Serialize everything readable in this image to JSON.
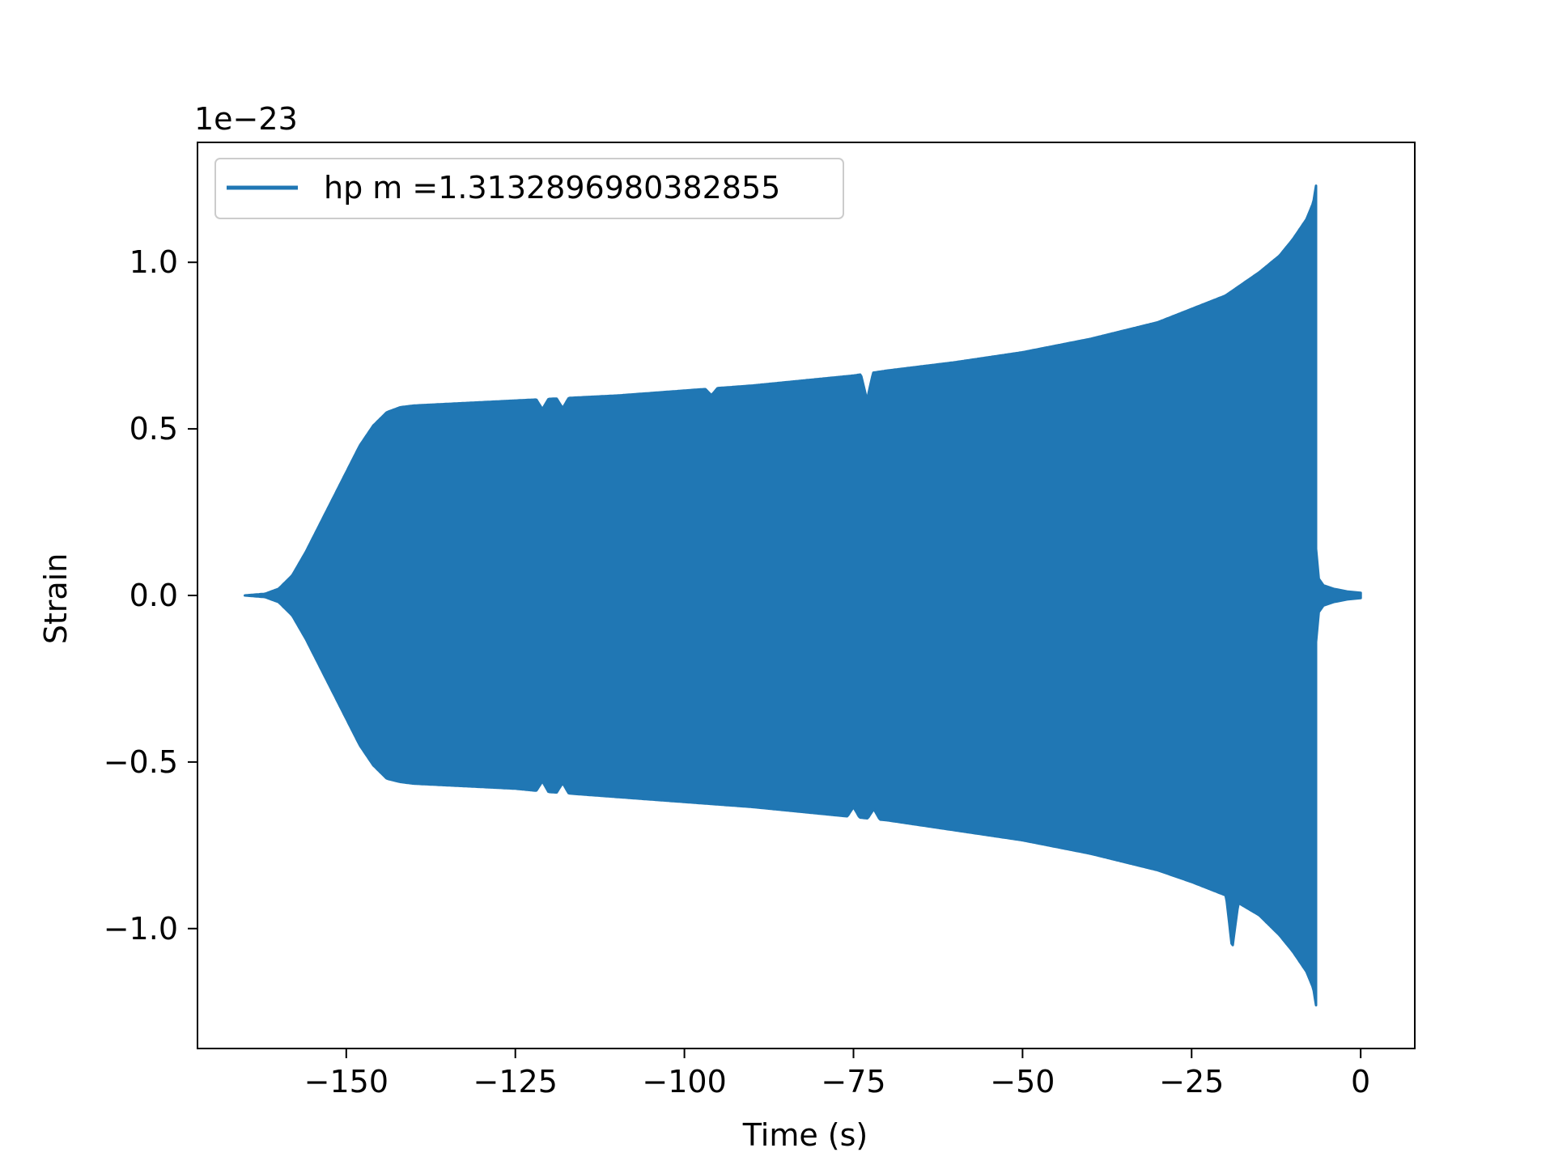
{
  "chart_data": {
    "type": "line",
    "title": "",
    "xlabel": "Time (s)",
    "ylabel": "Strain",
    "y_offset_text": "1e−23",
    "xlim": [
      -172,
      8
    ],
    "ylim": [
      -1.36,
      1.36
    ],
    "x_ticks": [
      -150,
      -125,
      -100,
      -75,
      -50,
      -25,
      0
    ],
    "x_tick_labels": [
      "−150",
      "−125",
      "−100",
      "−75",
      "−50",
      "−25",
      "0"
    ],
    "y_ticks": [
      1.0,
      0.5,
      0.0,
      -0.5,
      -1.0
    ],
    "y_tick_labels": [
      "1.0",
      "0.5",
      "0.0",
      "−0.5",
      "−1.0"
    ],
    "grid": false,
    "legend": {
      "position": "upper-left",
      "entries": [
        "hp m =1.3132896980382855"
      ]
    },
    "series": [
      {
        "name": "hp m =1.3132896980382855",
        "color": "#2077b4",
        "style": "dense oscillation (filled envelope)",
        "upper_envelope": {
          "x": [
            -165,
            -162,
            -160,
            -158,
            -156,
            -154,
            -152,
            -150,
            -148,
            -146,
            -144,
            -142,
            -140,
            -130,
            -125,
            -120,
            -110,
            -100,
            -90,
            -80,
            -75,
            -70,
            -60,
            -50,
            -40,
            -30,
            -25,
            -20,
            -15,
            -12,
            -10,
            -8,
            -7,
            -6.6
          ],
          "y": [
            0.0,
            0.005,
            0.02,
            0.06,
            0.13,
            0.21,
            0.29,
            0.37,
            0.45,
            0.51,
            0.55,
            0.565,
            0.57,
            0.58,
            0.585,
            0.59,
            0.6,
            0.615,
            0.63,
            0.65,
            0.66,
            0.675,
            0.7,
            0.73,
            0.77,
            0.82,
            0.86,
            0.9,
            0.97,
            1.02,
            1.07,
            1.13,
            1.18,
            1.23
          ]
        },
        "lower_envelope": {
          "x": [
            -165,
            -162,
            -160,
            -158,
            -156,
            -154,
            -152,
            -150,
            -148,
            -146,
            -144,
            -142,
            -140,
            -130,
            -125,
            -120,
            -110,
            -100,
            -90,
            -80,
            -75,
            -70,
            -60,
            -50,
            -40,
            -30,
            -25,
            -20,
            -15,
            -12,
            -10,
            -8,
            -7,
            -6.6
          ],
          "y": [
            0.0,
            -0.005,
            -0.02,
            -0.06,
            -0.13,
            -0.21,
            -0.29,
            -0.37,
            -0.45,
            -0.51,
            -0.55,
            -0.56,
            -0.565,
            -0.575,
            -0.58,
            -0.59,
            -0.605,
            -0.62,
            -0.635,
            -0.655,
            -0.665,
            -0.675,
            -0.705,
            -0.735,
            -0.775,
            -0.825,
            -0.86,
            -0.9,
            -0.96,
            -1.02,
            -1.07,
            -1.13,
            -1.18,
            -1.23
          ]
        },
        "tail": {
          "x": [
            -6.6,
            -6.2,
            -5.5,
            -4,
            -2,
            0
          ],
          "amplitude": [
            0.14,
            0.05,
            0.03,
            0.02,
            0.012,
            0.008
          ]
        },
        "notches": [
          {
            "x": -73,
            "side": "upper",
            "depth": 0.08
          },
          {
            "x": -121,
            "side": "upper",
            "depth": 0.03
          },
          {
            "x": -118,
            "side": "upper",
            "depth": 0.03
          },
          {
            "x": -96,
            "side": "upper",
            "depth": 0.02
          },
          {
            "x": -121,
            "side": "lower",
            "depth": 0.03
          },
          {
            "x": -118,
            "side": "lower",
            "depth": 0.03
          },
          {
            "x": -75,
            "side": "lower",
            "depth": 0.03
          },
          {
            "x": -72,
            "side": "lower",
            "depth": 0.03
          },
          {
            "x": -19,
            "side": "lower",
            "depth": -0.15
          }
        ]
      }
    ]
  }
}
